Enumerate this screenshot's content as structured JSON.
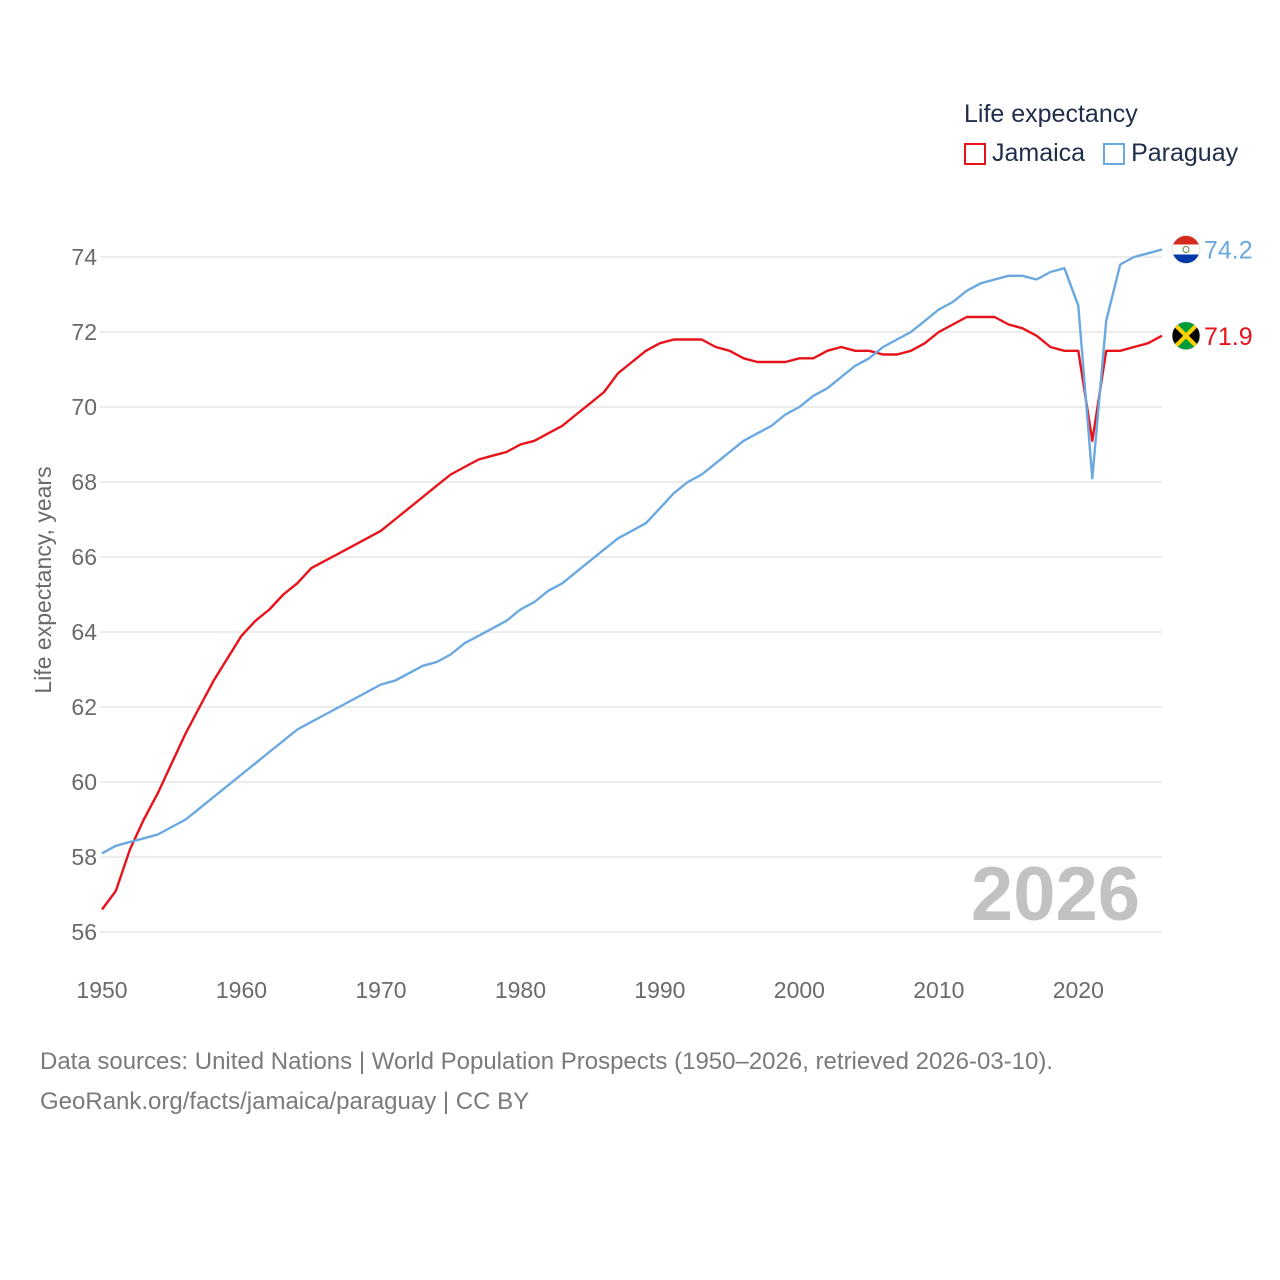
{
  "legend": {
    "title": "Life expectancy",
    "items": [
      {
        "name": "Jamaica",
        "color": "#e8131a"
      },
      {
        "name": "Paraguay",
        "color": "#6aa8e2"
      }
    ]
  },
  "year_display": "2026",
  "footer": {
    "line1": "Data sources: United Nations | World Population Prospects (1950–2026, retrieved 2026-03-10).",
    "line2": "GeoRank.org/facts/jamaica/paraguay | CC BY"
  },
  "chart_data": {
    "type": "line",
    "title": "Life expectancy",
    "xlabel": "",
    "ylabel": "Life expectancy, years",
    "xlim": [
      1950,
      2026
    ],
    "ylim": [
      55.5,
      74.8
    ],
    "xticks": [
      1950,
      1960,
      1970,
      1980,
      1990,
      2000,
      2010,
      2020
    ],
    "yticks": [
      56,
      58,
      60,
      62,
      64,
      66,
      68,
      70,
      72,
      74
    ],
    "grid": true,
    "legend_position": "top-right",
    "x": [
      1950,
      1951,
      1952,
      1953,
      1954,
      1955,
      1956,
      1957,
      1958,
      1959,
      1960,
      1961,
      1962,
      1963,
      1964,
      1965,
      1966,
      1967,
      1968,
      1969,
      1970,
      1971,
      1972,
      1973,
      1974,
      1975,
      1976,
      1977,
      1978,
      1979,
      1980,
      1981,
      1982,
      1983,
      1984,
      1985,
      1986,
      1987,
      1988,
      1989,
      1990,
      1991,
      1992,
      1993,
      1994,
      1995,
      1996,
      1997,
      1998,
      1999,
      2000,
      2001,
      2002,
      2003,
      2004,
      2005,
      2006,
      2007,
      2008,
      2009,
      2010,
      2011,
      2012,
      2013,
      2014,
      2015,
      2016,
      2017,
      2018,
      2019,
      2020,
      2021,
      2022,
      2023,
      2024,
      2025,
      2026
    ],
    "series": [
      {
        "name": "Jamaica",
        "color": "#e8131a",
        "end_label": "71.9",
        "values": [
          56.6,
          57.1,
          58.2,
          59.0,
          59.7,
          60.5,
          61.3,
          62.0,
          62.7,
          63.3,
          63.9,
          64.3,
          64.6,
          65.0,
          65.3,
          65.7,
          65.9,
          66.1,
          66.3,
          66.5,
          66.7,
          67.0,
          67.3,
          67.6,
          67.9,
          68.2,
          68.4,
          68.6,
          68.7,
          68.8,
          69.0,
          69.1,
          69.3,
          69.5,
          69.8,
          70.1,
          70.4,
          70.9,
          71.2,
          71.5,
          71.7,
          71.8,
          71.8,
          71.8,
          71.6,
          71.5,
          71.3,
          71.2,
          71.2,
          71.2,
          71.3,
          71.3,
          71.5,
          71.6,
          71.5,
          71.5,
          71.4,
          71.4,
          71.5,
          71.7,
          72.0,
          72.2,
          72.4,
          72.4,
          72.4,
          72.2,
          72.1,
          71.9,
          71.6,
          71.5,
          71.5,
          69.1,
          71.5,
          71.5,
          71.6,
          71.7,
          71.9
        ]
      },
      {
        "name": "Paraguay",
        "color": "#6aa8e2",
        "end_label": "74.2",
        "values": [
          58.1,
          58.3,
          58.4,
          58.5,
          58.6,
          58.8,
          59.0,
          59.3,
          59.6,
          59.9,
          60.2,
          60.5,
          60.8,
          61.1,
          61.4,
          61.6,
          61.8,
          62.0,
          62.2,
          62.4,
          62.6,
          62.7,
          62.9,
          63.1,
          63.2,
          63.4,
          63.7,
          63.9,
          64.1,
          64.3,
          64.6,
          64.8,
          65.1,
          65.3,
          65.6,
          65.9,
          66.2,
          66.5,
          66.7,
          66.9,
          67.3,
          67.7,
          68.0,
          68.2,
          68.5,
          68.8,
          69.1,
          69.3,
          69.5,
          69.8,
          70.0,
          70.3,
          70.5,
          70.8,
          71.1,
          71.3,
          71.6,
          71.8,
          72.0,
          72.3,
          72.6,
          72.8,
          73.1,
          73.3,
          73.4,
          73.5,
          73.5,
          73.4,
          73.6,
          73.7,
          72.7,
          68.1,
          72.3,
          73.8,
          74.0,
          74.1,
          74.2
        ]
      }
    ]
  }
}
